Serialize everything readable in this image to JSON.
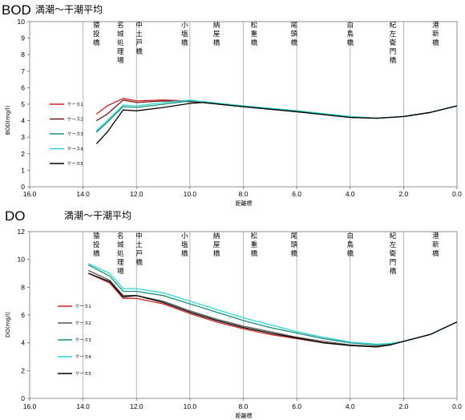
{
  "chart_data": [
    {
      "type": "line",
      "title": "BOD",
      "subtitle": "満潮～干潮平均",
      "xlabel": "距離標",
      "ylabel": "BOD(mg/l)",
      "xlim": [
        16.0,
        0.0
      ],
      "ylim": [
        0,
        10
      ],
      "x_ticks": [
        "16.0",
        "14.0",
        "12.0",
        "10.0",
        "8.0",
        "6.0",
        "4.0",
        "2.0",
        "0.0"
      ],
      "y_ticks": [
        "0",
        "1",
        "2",
        "3",
        "4",
        "5",
        "6",
        "7",
        "8",
        "9",
        "10"
      ],
      "grid": "vertical",
      "legend_position": "left",
      "bridges": [
        {
          "name": "猿投橋",
          "km": 13.5
        },
        {
          "name": "名城処理場",
          "km": 12.6
        },
        {
          "name": "中土戸橋",
          "km": 11.9
        },
        {
          "name": "小塩橋",
          "km": 10.2
        },
        {
          "name": "納屋橋",
          "km": 9.0
        },
        {
          "name": "松重橋",
          "km": 7.6
        },
        {
          "name": "尾頭橋",
          "km": 6.1
        },
        {
          "name": "白鳥橋",
          "km": 4.0
        },
        {
          "name": "紀左衛門橋",
          "km": 2.4
        },
        {
          "name": "港新橋",
          "km": 0.8
        }
      ],
      "series": [
        {
          "name": "ケース1",
          "color": "#d22222",
          "x": [
            13.5,
            13.1,
            12.5,
            12.0,
            11.0,
            10.0,
            9.5,
            8.0,
            6.0,
            4.0,
            3.0,
            2.0,
            1.0,
            0.0
          ],
          "values": [
            4.4,
            4.9,
            5.35,
            5.2,
            5.25,
            5.2,
            5.1,
            4.85,
            4.55,
            4.2,
            4.15,
            4.25,
            4.5,
            4.9
          ]
        },
        {
          "name": "ケース2",
          "color": "#6e1a1a",
          "x": [
            13.5,
            13.1,
            12.5,
            12.0,
            11.0,
            10.0,
            9.5,
            8.0,
            6.0,
            4.0,
            3.0,
            2.0,
            1.0,
            0.0
          ],
          "values": [
            4.0,
            4.4,
            5.25,
            5.1,
            5.2,
            5.15,
            5.1,
            4.85,
            4.55,
            4.2,
            4.15,
            4.25,
            4.5,
            4.9
          ]
        },
        {
          "name": "ケース3",
          "color": "#1a8a7a",
          "x": [
            13.5,
            13.1,
            12.5,
            12.0,
            11.0,
            10.0,
            9.5,
            8.0,
            6.0,
            4.0,
            3.0,
            2.0,
            1.0,
            0.0
          ],
          "values": [
            3.3,
            3.9,
            4.85,
            4.8,
            5.0,
            5.2,
            5.15,
            4.9,
            4.6,
            4.25,
            4.15,
            4.25,
            4.5,
            4.9
          ]
        },
        {
          "name": "ケース4",
          "color": "#2fd6cf",
          "x": [
            13.5,
            13.1,
            12.5,
            12.0,
            11.0,
            10.0,
            9.5,
            8.0,
            6.0,
            4.0,
            3.0,
            2.0,
            1.0,
            0.0
          ],
          "values": [
            3.4,
            4.0,
            4.95,
            4.9,
            5.1,
            5.25,
            5.15,
            4.9,
            4.6,
            4.25,
            4.15,
            4.25,
            4.5,
            4.9
          ]
        },
        {
          "name": "ケース5",
          "color": "#000000",
          "x": [
            13.5,
            13.1,
            12.5,
            12.0,
            11.0,
            10.0,
            9.5,
            8.0,
            6.0,
            4.0,
            3.0,
            2.0,
            1.0,
            0.0
          ],
          "values": [
            2.6,
            3.3,
            4.65,
            4.6,
            4.8,
            5.05,
            5.1,
            4.85,
            4.55,
            4.2,
            4.15,
            4.25,
            4.5,
            4.9
          ]
        }
      ]
    },
    {
      "type": "line",
      "title": "DO",
      "subtitle": "満潮～干潮平均",
      "xlabel": "距離標",
      "ylabel": "DO(mg/l)",
      "xlim": [
        16.0,
        0.0
      ],
      "ylim": [
        0,
        12
      ],
      "x_ticks": [
        "16.0",
        "14.0",
        "12.0",
        "10.0",
        "8.0",
        "6.0",
        "4.0",
        "2.0",
        "0.0"
      ],
      "y_ticks": [
        "0",
        "2",
        "4",
        "6",
        "8",
        "10",
        "12"
      ],
      "grid": "vertical",
      "legend_position": "left",
      "bridges": [
        {
          "name": "猿投橋",
          "km": 13.5
        },
        {
          "name": "名城処理場",
          "km": 12.6
        },
        {
          "name": "中土戸橋",
          "km": 11.9
        },
        {
          "name": "小塩橋",
          "km": 10.2
        },
        {
          "name": "納屋橋",
          "km": 9.0
        },
        {
          "name": "松重橋",
          "km": 7.6
        },
        {
          "name": "尾頭橋",
          "km": 6.1
        },
        {
          "name": "白鳥橋",
          "km": 4.0
        },
        {
          "name": "紀左衛門橋",
          "km": 2.4
        },
        {
          "name": "港新橋",
          "km": 0.8
        }
      ],
      "series": [
        {
          "name": "ケース1",
          "color": "#d22222",
          "x": [
            13.8,
            13.0,
            12.5,
            12.0,
            11.0,
            10.0,
            9.0,
            8.0,
            7.0,
            6.0,
            5.0,
            4.0,
            3.0,
            2.5,
            2.0,
            1.0,
            0.0
          ],
          "values": [
            9.0,
            8.3,
            7.2,
            7.2,
            6.8,
            6.1,
            5.5,
            5.0,
            4.6,
            4.3,
            4.0,
            3.8,
            3.75,
            3.85,
            4.1,
            4.6,
            5.5
          ]
        },
        {
          "name": "ケース2",
          "color": "#555555",
          "x": [
            13.8,
            13.0,
            12.5,
            12.0,
            11.0,
            10.0,
            9.0,
            8.0,
            7.0,
            6.0,
            5.0,
            4.0,
            3.0,
            2.5,
            2.0,
            1.0,
            0.0
          ],
          "values": [
            9.2,
            8.5,
            7.4,
            7.4,
            7.0,
            6.3,
            5.7,
            5.2,
            4.8,
            4.4,
            4.1,
            3.85,
            3.75,
            3.85,
            4.1,
            4.6,
            5.5
          ]
        },
        {
          "name": "ケース3",
          "color": "#1a8a7a",
          "x": [
            13.8,
            13.0,
            12.5,
            12.0,
            11.0,
            10.0,
            9.0,
            8.0,
            7.0,
            6.0,
            5.0,
            4.0,
            3.0,
            2.5,
            2.0,
            1.0,
            0.0
          ],
          "values": [
            9.6,
            8.8,
            7.7,
            7.7,
            7.4,
            6.8,
            6.2,
            5.6,
            5.1,
            4.7,
            4.3,
            4.0,
            3.85,
            3.9,
            4.1,
            4.6,
            5.5
          ]
        },
        {
          "name": "ケース4",
          "color": "#2fd6cf",
          "x": [
            13.8,
            13.0,
            12.5,
            12.0,
            11.0,
            10.0,
            9.0,
            8.0,
            7.0,
            6.0,
            5.0,
            4.0,
            3.0,
            2.5,
            2.0,
            1.0,
            0.0
          ],
          "values": [
            9.7,
            9.0,
            7.9,
            7.9,
            7.6,
            7.0,
            6.4,
            5.8,
            5.3,
            4.8,
            4.4,
            4.05,
            3.9,
            3.95,
            4.1,
            4.6,
            5.5
          ]
        },
        {
          "name": "ケース5",
          "color": "#000000",
          "x": [
            13.8,
            13.0,
            12.5,
            12.0,
            11.0,
            10.0,
            9.0,
            8.0,
            7.0,
            6.0,
            5.0,
            4.0,
            3.0,
            2.5,
            2.0,
            1.0,
            0.0
          ],
          "values": [
            9.0,
            8.4,
            7.3,
            7.4,
            6.9,
            6.2,
            5.6,
            5.1,
            4.7,
            4.35,
            4.0,
            3.8,
            3.7,
            3.85,
            4.1,
            4.6,
            5.5
          ]
        }
      ]
    }
  ]
}
